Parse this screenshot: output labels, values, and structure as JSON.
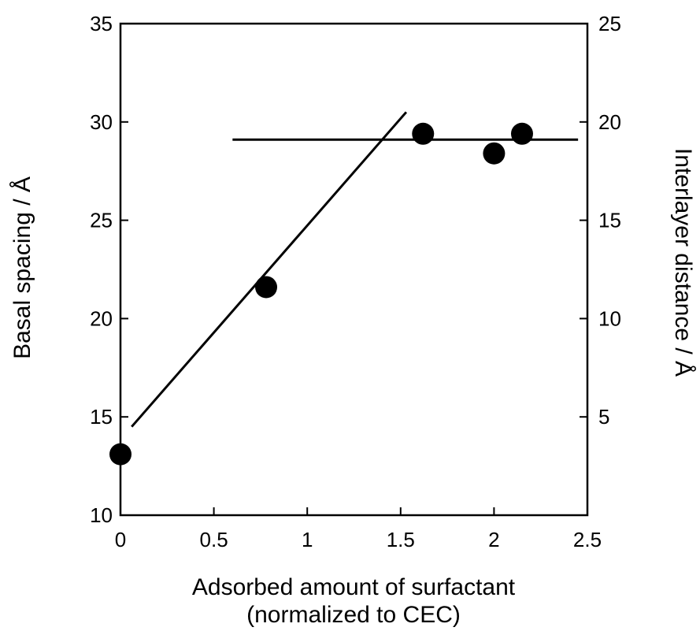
{
  "chart_data": {
    "type": "scatter",
    "title": "",
    "xlabel": [
      "Adsorbed amount of surfactant",
      "(normalized to CEC)"
    ],
    "ylabel": "Basal spacing / Å",
    "y2label": "Interlayer distance / Å",
    "xlim": [
      0,
      2.5
    ],
    "ylim": [
      10,
      35
    ],
    "y2lim": [
      0,
      25
    ],
    "x_ticks": [
      "0",
      "0.5",
      "1",
      "1.5",
      "2",
      "2.5"
    ],
    "x_tick_values": [
      0,
      0.5,
      1,
      1.5,
      2,
      2.5
    ],
    "y_ticks": [
      "10",
      "15",
      "20",
      "25",
      "30",
      "35"
    ],
    "y_tick_values": [
      10,
      15,
      20,
      25,
      30,
      35
    ],
    "y2_ticks": [
      "5",
      "10",
      "15",
      "20",
      "25"
    ],
    "y2_tick_values": [
      5,
      10,
      15,
      20,
      25
    ],
    "grid": false,
    "points": [
      {
        "x": 0.0,
        "y": 13.1
      },
      {
        "x": 0.78,
        "y": 21.6
      },
      {
        "x": 1.62,
        "y": 29.4
      },
      {
        "x": 2.0,
        "y": 28.4
      },
      {
        "x": 2.15,
        "y": 29.4
      }
    ],
    "fit_lines": [
      {
        "x": [
          0.06,
          1.53
        ],
        "y": [
          14.5,
          30.5
        ]
      },
      {
        "x": [
          0.6,
          2.45
        ],
        "y": [
          29.1,
          29.1
        ]
      }
    ]
  }
}
